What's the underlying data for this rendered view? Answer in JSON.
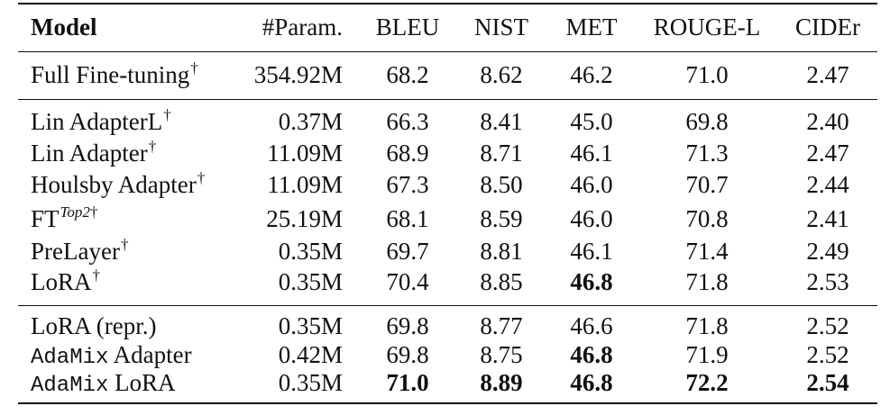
{
  "header": {
    "model": "Model",
    "param": "#Param.",
    "bleu": "BLEU",
    "nist": "NIST",
    "met": "MET",
    "rouge": "ROUGE-L",
    "cider": "CIDEr"
  },
  "full": {
    "model": "Full Fine-tuning",
    "sup": "†",
    "param": "354.92M",
    "bleu": "68.2",
    "nist": "8.62",
    "met": "46.2",
    "rouge": "71.0",
    "cider": "2.47"
  },
  "lin_l": {
    "model": "Lin AdapterL",
    "sup": "†",
    "param": "0.37M",
    "bleu": "66.3",
    "nist": "8.41",
    "met": "45.0",
    "rouge": "69.8",
    "cider": "2.40"
  },
  "lin": {
    "model": "Lin Adapter",
    "sup": "†",
    "param": "11.09M",
    "bleu": "68.9",
    "nist": "8.71",
    "met": "46.1",
    "rouge": "71.3",
    "cider": "2.47"
  },
  "houlsby": {
    "model": "Houlsby Adapter",
    "sup": "†",
    "param": "11.09M",
    "bleu": "67.3",
    "nist": "8.50",
    "met": "46.0",
    "rouge": "70.7",
    "cider": "2.44"
  },
  "ft": {
    "model": "FT",
    "sup_italic": "Top2",
    "sup": "†",
    "param": "25.19M",
    "bleu": "68.1",
    "nist": "8.59",
    "met": "46.0",
    "rouge": "70.8",
    "cider": "2.41"
  },
  "prelayer": {
    "model": "PreLayer",
    "sup": "†",
    "param": "0.35M",
    "bleu": "69.7",
    "nist": "8.81",
    "met": "46.1",
    "rouge": "71.4",
    "cider": "2.49"
  },
  "lora": {
    "model": "LoRA",
    "sup": "†",
    "param": "0.35M",
    "bleu": "70.4",
    "nist": "8.85",
    "met": "46.8",
    "rouge": "71.8",
    "cider": "2.53"
  },
  "lora_repr": {
    "model": "LoRA (repr.)",
    "param": "0.35M",
    "bleu": "69.8",
    "nist": "8.77",
    "met": "46.6",
    "rouge": "71.8",
    "cider": "2.52"
  },
  "adamix_adapter": {
    "model_mono": "AdaMix",
    "model_rest": " Adapter",
    "param": "0.42M",
    "bleu": "69.8",
    "nist": "8.75",
    "met": "46.8",
    "rouge": "71.9",
    "cider": "2.52"
  },
  "adamix_lora": {
    "model_mono": "AdaMix",
    "model_rest": " LoRA",
    "param": "0.35M",
    "bleu": "71.0",
    "nist": "8.89",
    "met": "46.8",
    "rouge": "72.2",
    "cider": "2.54"
  }
}
